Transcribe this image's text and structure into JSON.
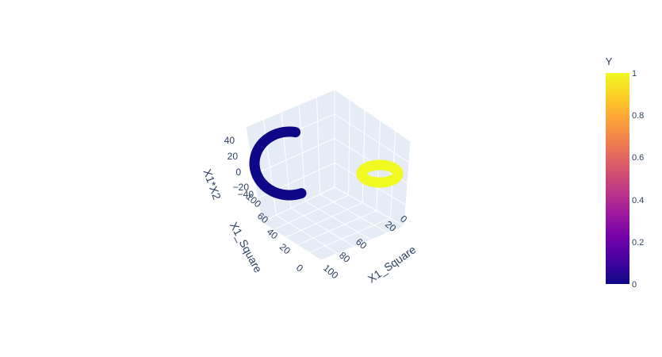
{
  "chart_data": {
    "type": "scatter3d",
    "axes": {
      "x": {
        "title": "X1_Square",
        "range": [
          0,
          100
        ],
        "ticks": [
          "0",
          "20",
          "40",
          "60",
          "80",
          "100"
        ]
      },
      "y": {
        "title": "X1_Square",
        "range": [
          0,
          100
        ],
        "ticks": [
          "0",
          "20",
          "40",
          "60",
          "80",
          "100"
        ]
      },
      "z": {
        "title": "X1*X2",
        "range": [
          -40,
          40
        ],
        "ticks": [
          "−40",
          "−20",
          "0",
          "20",
          "40"
        ]
      }
    },
    "colorbar": {
      "title": "Y",
      "ticks": [
        "0",
        "0.2",
        "0.4",
        "0.6",
        "0.8",
        "1"
      ],
      "colors": [
        "#0d0887",
        "#46039f",
        "#7201a8",
        "#9c179e",
        "#bd3786",
        "#d8576b",
        "#ed7953",
        "#fb9f3a",
        "#fdca26",
        "#f0f921"
      ]
    },
    "series": [
      {
        "class": 0,
        "color": "#0d0887",
        "description": "outer circle, arc"
      },
      {
        "class": 1,
        "color": "#f0f921",
        "description": "inner circle, ring"
      }
    ],
    "grid": true
  }
}
